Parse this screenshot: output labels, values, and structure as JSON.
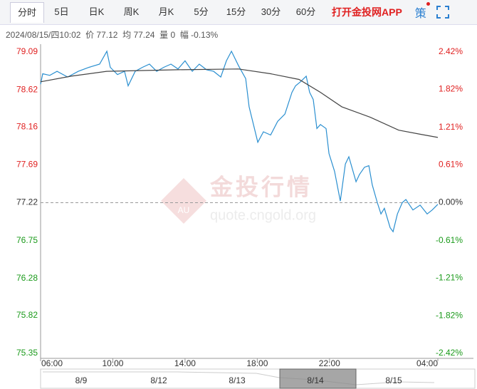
{
  "tabs": [
    "分时",
    "5日",
    "日K",
    "周K",
    "月K",
    "5分",
    "15分",
    "30分",
    "60分"
  ],
  "app_link": "打开金投网APP",
  "strategy": "策",
  "info": "2024/08/15/四10:02  价 77.12  均 77.24  量 0  幅 -0.13%",
  "watermark": {
    "title": "金投行情",
    "badge": "AU",
    "url": "quote.cngold.org"
  },
  "navigator": {
    "labels": [
      "8/9",
      "8/12",
      "8/13",
      "8/14",
      "8/15"
    ],
    "selected": 3
  },
  "chart_data": {
    "type": "line",
    "xlim": [
      6,
      28
    ],
    "xticks": [
      {
        "value": 6,
        "label": "06:00"
      },
      {
        "value": 10,
        "label": "10:00"
      },
      {
        "value": 14,
        "label": "14:00"
      },
      {
        "value": 18,
        "label": "18:00"
      },
      {
        "value": 22,
        "label": "22:00"
      },
      {
        "value": 28,
        "label": "04:00"
      }
    ],
    "ylim": [
      75.35,
      79.09
    ],
    "yticks": [
      79.09,
      78.62,
      78.16,
      77.69,
      77.22,
      76.75,
      76.28,
      75.82,
      75.35
    ],
    "y2lim": [
      -2.42,
      2.42
    ],
    "y2ticks": [
      {
        "value": 2.42,
        "label": "2.42%"
      },
      {
        "value": 1.82,
        "label": "1.82%"
      },
      {
        "value": 1.21,
        "label": "1.21%"
      },
      {
        "value": 0.61,
        "label": "0.61%"
      },
      {
        "value": 0,
        "label": "0.00%"
      },
      {
        "value": -0.61,
        "label": "-0.61%"
      },
      {
        "value": -1.21,
        "label": "-1.21%"
      },
      {
        "value": -1.82,
        "label": "-1.82%"
      },
      {
        "value": -2.42,
        "label": "-2.42%"
      }
    ],
    "reference_line": 77.22,
    "up_color": "#e02020",
    "down_color": "#1a9a1a",
    "flat_color": "#333333",
    "series": [
      {
        "color": "#2a8fd0",
        "x": [
          6.0,
          6.12,
          6.51,
          6.91,
          7.5,
          8.09,
          8.68,
          9.27,
          9.67,
          9.86,
          10.26,
          10.65,
          10.85,
          11.24,
          11.64,
          12.03,
          12.43,
          12.82,
          13.22,
          13.61,
          14.0,
          14.4,
          14.79,
          15.19,
          15.58,
          15.98,
          16.29,
          16.57,
          16.96,
          17.36,
          17.55,
          18.03,
          18.34,
          18.74,
          19.13,
          19.53,
          19.92,
          20.12,
          20.39,
          20.71,
          20.9,
          21.1,
          21.3,
          21.5,
          21.81,
          21.97,
          22.28,
          22.6,
          22.88,
          23.07,
          23.47,
          23.66,
          23.94,
          24.18,
          24.37,
          24.65,
          24.85,
          25.04,
          25.36,
          25.52,
          25.76,
          26.03,
          26.23,
          26.62,
          27.02,
          27.41,
          27.69,
          28.0
        ],
        "values": [
          78.69,
          78.82,
          78.8,
          78.85,
          78.78,
          78.85,
          78.9,
          78.94,
          79.1,
          78.9,
          78.81,
          78.85,
          78.67,
          78.85,
          78.9,
          78.94,
          78.85,
          78.9,
          78.94,
          78.88,
          78.98,
          78.85,
          78.94,
          78.87,
          78.85,
          78.78,
          78.98,
          79.1,
          78.92,
          78.76,
          78.41,
          77.97,
          78.1,
          78.06,
          78.23,
          78.32,
          78.59,
          78.67,
          78.72,
          78.79,
          78.59,
          78.5,
          78.14,
          78.19,
          78.14,
          77.83,
          77.61,
          77.24,
          77.7,
          77.79,
          77.48,
          77.57,
          77.66,
          77.68,
          77.44,
          77.22,
          77.08,
          77.15,
          76.91,
          76.86,
          77.08,
          77.22,
          77.26,
          77.13,
          77.19,
          77.08,
          77.13,
          77.2
        ]
      },
      {
        "color": "#444444",
        "x": [
          6.0,
          7.7,
          9.66,
          13.6,
          16.96,
          18.74,
          20.31,
          21.5,
          22.68,
          24.26,
          25.83,
          27.02,
          28.0
        ],
        "values": [
          78.72,
          78.79,
          78.85,
          78.87,
          78.88,
          78.82,
          78.75,
          78.59,
          78.41,
          78.28,
          78.12,
          78.07,
          78.03
        ]
      }
    ]
  }
}
